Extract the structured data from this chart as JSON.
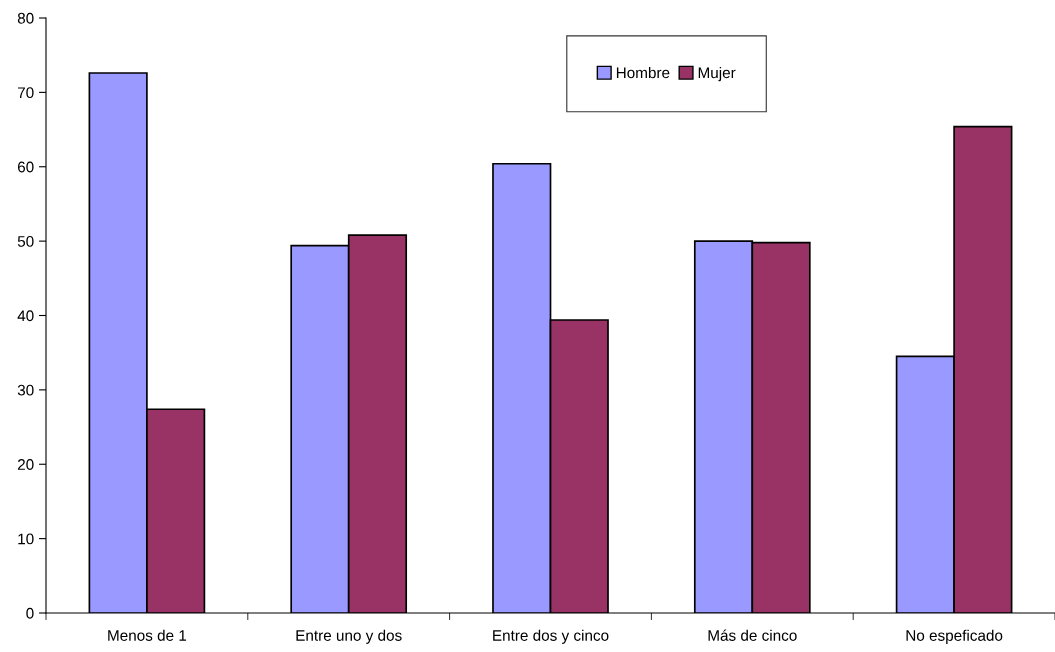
{
  "chart_data": {
    "type": "bar",
    "categories": [
      "Menos de 1",
      "Entre uno y dos",
      "Entre dos y cinco",
      "Más de cinco",
      "No espeficado"
    ],
    "series": [
      {
        "name": "Hombre",
        "color": "#9999ff",
        "values": [
          72.6,
          49.4,
          60.4,
          50.0,
          34.5
        ]
      },
      {
        "name": "Mujer",
        "color": "#993366",
        "values": [
          27.4,
          50.8,
          39.4,
          49.8,
          65.4
        ]
      }
    ],
    "ylim": [
      0,
      80
    ],
    "yticks": [
      0,
      10,
      20,
      30,
      40,
      50,
      60,
      70,
      80
    ],
    "grid": false,
    "legend": "top"
  }
}
